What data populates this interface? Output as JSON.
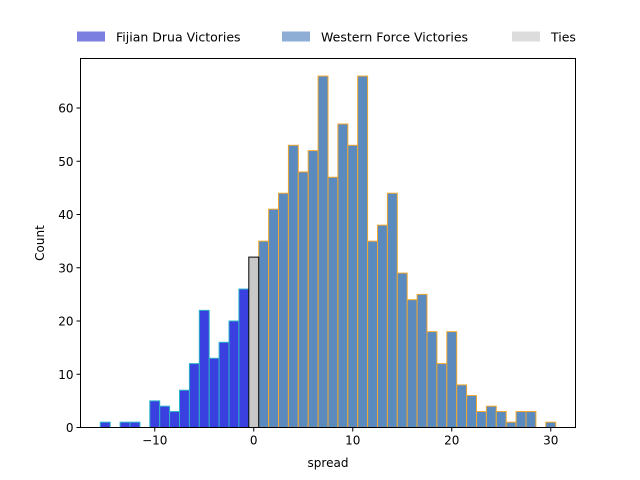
{
  "chart_data": {
    "type": "bar",
    "title": "",
    "xlabel": "spread",
    "ylabel": "Count",
    "xlim": [
      -17.5,
      32.5
    ],
    "ylim": [
      0,
      69.3
    ],
    "xticks": [
      -10,
      0,
      10,
      20,
      30
    ],
    "yticks": [
      0,
      10,
      20,
      30,
      40,
      50,
      60
    ],
    "bin_width": 1,
    "grid": false,
    "legend_placement": "top, above plot",
    "series": [
      {
        "name": "Fijian Drua Victories",
        "color": "#3a3fe0",
        "legend_color": "#7b7fe0",
        "edge_color": "#2bb5c9",
        "bins": [
          {
            "x": -15,
            "count": 1
          },
          {
            "x": -13,
            "count": 1
          },
          {
            "x": -12,
            "count": 1
          },
          {
            "x": -10,
            "count": 5
          },
          {
            "x": -9,
            "count": 4
          },
          {
            "x": -8,
            "count": 3
          },
          {
            "x": -7,
            "count": 7
          },
          {
            "x": -6,
            "count": 12
          },
          {
            "x": -5,
            "count": 22
          },
          {
            "x": -4,
            "count": 13
          },
          {
            "x": -3,
            "count": 16
          },
          {
            "x": -2,
            "count": 20
          },
          {
            "x": -1,
            "count": 26
          }
        ]
      },
      {
        "name": "Western Force Victories",
        "color": "#5b8abf",
        "legend_color": "#8eaed6",
        "edge_color": "#f0a830",
        "bins": [
          {
            "x": 1,
            "count": 35
          },
          {
            "x": 2,
            "count": 41
          },
          {
            "x": 3,
            "count": 44
          },
          {
            "x": 4,
            "count": 53
          },
          {
            "x": 5,
            "count": 48
          },
          {
            "x": 6,
            "count": 52
          },
          {
            "x": 7,
            "count": 66
          },
          {
            "x": 8,
            "count": 47
          },
          {
            "x": 9,
            "count": 57
          },
          {
            "x": 10,
            "count": 53
          },
          {
            "x": 11,
            "count": 66
          },
          {
            "x": 12,
            "count": 35
          },
          {
            "x": 13,
            "count": 38
          },
          {
            "x": 14,
            "count": 44
          },
          {
            "x": 15,
            "count": 29
          },
          {
            "x": 16,
            "count": 24
          },
          {
            "x": 17,
            "count": 25
          },
          {
            "x": 18,
            "count": 18
          },
          {
            "x": 19,
            "count": 12
          },
          {
            "x": 20,
            "count": 18
          },
          {
            "x": 21,
            "count": 8
          },
          {
            "x": 22,
            "count": 6
          },
          {
            "x": 23,
            "count": 3
          },
          {
            "x": 24,
            "count": 4
          },
          {
            "x": 25,
            "count": 3
          },
          {
            "x": 26,
            "count": 1
          },
          {
            "x": 27,
            "count": 3
          },
          {
            "x": 28,
            "count": 3
          },
          {
            "x": 30,
            "count": 1
          }
        ]
      },
      {
        "name": "Ties",
        "color": "#c8c8c8",
        "legend_color": "#dcdcdc",
        "edge_color": "#000000",
        "bins": [
          {
            "x": 0,
            "count": 32
          }
        ]
      }
    ]
  }
}
